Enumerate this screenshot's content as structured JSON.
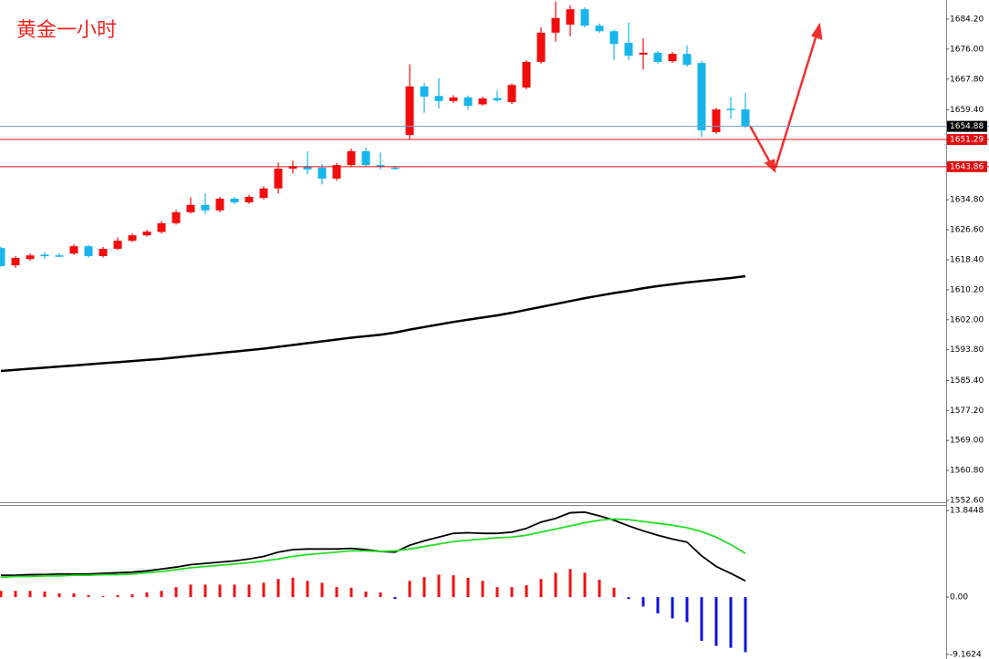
{
  "chart_data": [
    {
      "type": "candlestick",
      "title": "黄金一小时",
      "ylim": [
        1552.35,
        1689.43
      ],
      "yticks": [
        {
          "value": 1684.2,
          "label": "1684.20"
        },
        {
          "value": 1676,
          "label": "1676.00"
        },
        {
          "value": 1667.8,
          "label": "1667.80"
        },
        {
          "value": 1659.4,
          "label": "1659.40"
        },
        {
          "value": 1634.8,
          "label": "1634.80"
        },
        {
          "value": 1626.6,
          "label": "1626.60"
        },
        {
          "value": 1618.4,
          "label": "1618.40"
        },
        {
          "value": 1610.2,
          "label": "1610.20"
        },
        {
          "value": 1602,
          "label": "1602.00"
        },
        {
          "value": 1593.8,
          "label": "1593.80"
        },
        {
          "value": 1585.4,
          "label": "1585.40"
        },
        {
          "value": 1577.2,
          "label": "1577.20"
        },
        {
          "value": 1569,
          "label": "1569.00"
        },
        {
          "value": 1560.8,
          "label": "1560.80"
        },
        {
          "value": 1552.6,
          "label": "1552.60"
        }
      ],
      "up_color": "#f20d0d",
      "down_color": "#17b5ea",
      "open": [
        1621.6,
        1616.9,
        1618.6,
        1619.8,
        1619.6,
        1620.1,
        1622.1,
        1619.4,
        1621.4,
        1623.6,
        1625.1,
        1626.0,
        1628.4,
        1631.4,
        1633.4,
        1631.9,
        1635.1,
        1634.1,
        1635.3,
        1637.9,
        1643.3,
        1644.0,
        1643.6,
        1640.6,
        1644.3,
        1648.1,
        1644.3,
        1643.6,
        1652.5,
        1665.8,
        1663.2,
        1661.8,
        1662.8,
        1660.9,
        1662.6,
        1661.5,
        1665.5,
        1672.5,
        1680.5,
        1682.7,
        1686.9,
        1682.4,
        1680.9,
        1677.7,
        1674.5,
        1675.0,
        1672.7,
        1674.7,
        1672.2,
        1653.3,
        1659.7,
        1659.5
      ],
      "high": [
        1622.0,
        1619.4,
        1620.1,
        1620.5,
        1620.2,
        1622.6,
        1622.5,
        1621.9,
        1624.5,
        1625.6,
        1626.6,
        1629.0,
        1632.0,
        1635.5,
        1636.6,
        1635.6,
        1635.6,
        1636.2,
        1638.5,
        1645.0,
        1645.5,
        1648.0,
        1644.6,
        1644.9,
        1648.8,
        1649.0,
        1647.7,
        1644.1,
        1671.8,
        1666.8,
        1668.0,
        1663.4,
        1663.3,
        1663.0,
        1664.7,
        1666.6,
        1673.0,
        1682.0,
        1689.0,
        1688.0,
        1687.4,
        1683.0,
        1681.3,
        1683.3,
        1679.0,
        1675.5,
        1675.2,
        1677.0,
        1672.8,
        1660.0,
        1663.0,
        1664.0
      ],
      "low": [
        1616.5,
        1616.2,
        1618.1,
        1618.6,
        1619.1,
        1619.7,
        1619.0,
        1619.0,
        1621.0,
        1623.2,
        1624.7,
        1625.6,
        1628.0,
        1631.0,
        1631.0,
        1631.4,
        1633.6,
        1633.7,
        1634.9,
        1636.5,
        1642.0,
        1641.8,
        1639.0,
        1640.0,
        1643.9,
        1643.9,
        1643.0,
        1643.0,
        1651.4,
        1658.6,
        1659.7,
        1661.3,
        1659.4,
        1660.5,
        1661.6,
        1661.0,
        1665.0,
        1672.0,
        1678.0,
        1679.5,
        1681.9,
        1680.4,
        1673.0,
        1673.0,
        1670.5,
        1672.0,
        1672.2,
        1671.2,
        1652.0,
        1652.8,
        1657.0,
        1654.4
      ],
      "close": [
        1616.7,
        1618.9,
        1619.6,
        1619.4,
        1619.5,
        1622.1,
        1619.4,
        1621.4,
        1623.6,
        1625.1,
        1626.1,
        1628.4,
        1631.4,
        1633.4,
        1631.9,
        1635.1,
        1634.1,
        1635.6,
        1637.9,
        1643.3,
        1644.0,
        1643.1,
        1640.6,
        1644.3,
        1648.1,
        1644.3,
        1643.8,
        1643.3,
        1665.8,
        1663.0,
        1661.8,
        1662.8,
        1660.5,
        1662.5,
        1662.0,
        1666.2,
        1672.5,
        1680.5,
        1684.5,
        1686.9,
        1682.4,
        1680.9,
        1677.4,
        1674.2,
        1675.0,
        1672.5,
        1674.7,
        1671.7,
        1653.8,
        1659.5,
        1659.5,
        1654.8
      ],
      "ma": {
        "color": "#000000",
        "values": [
          1588.0,
          1588.3,
          1588.6,
          1588.9,
          1589.2,
          1589.5,
          1589.8,
          1590.1,
          1590.4,
          1590.7,
          1591.0,
          1591.3,
          1591.7,
          1592.1,
          1592.5,
          1592.9,
          1593.3,
          1593.7,
          1594.1,
          1594.6,
          1595.1,
          1595.6,
          1596.1,
          1596.6,
          1597.1,
          1597.5,
          1597.9,
          1598.5,
          1599.3,
          1600.0,
          1600.7,
          1601.4,
          1602.0,
          1602.6,
          1603.2,
          1603.9,
          1604.7,
          1605.5,
          1606.3,
          1607.1,
          1607.9,
          1608.6,
          1609.3,
          1609.9,
          1610.6,
          1611.2,
          1611.7,
          1612.2,
          1612.6,
          1613.0,
          1613.4,
          1613.9
        ]
      },
      "hlines": [
        {
          "value": 1654.88,
          "color": "#6f9fd2",
          "label_color": "#000000"
        },
        {
          "value": 1651.29,
          "color": "#e01010",
          "label_color": "#e01010"
        },
        {
          "value": 1643.86,
          "color": "#e01010",
          "label_color": "#e01010"
        }
      ]
    },
    {
      "type": "macd",
      "ylim": [
        -9.9,
        14.6
      ],
      "yticks": [
        13.8448,
        {
          "value": 0,
          "label": "0.00"
        },
        -9.1624
      ],
      "pos_color": "#ee1111",
      "neg_color": "#1010dd",
      "histogram": [
        1.0,
        1.0,
        1.0,
        0.9,
        0.6,
        0.6,
        0.3,
        0.15,
        0.3,
        0.45,
        0.75,
        1.0,
        1.6,
        2.0,
        2.0,
        2.0,
        2.0,
        2.0,
        2.3,
        2.9,
        3.1,
        2.6,
        2.3,
        1.6,
        1.5,
        0.9,
        0.75,
        -0.3,
        2.6,
        3.2,
        3.6,
        3.5,
        3.1,
        2.6,
        1.6,
        1.6,
        1.9,
        2.9,
        3.9,
        4.5,
        3.9,
        2.8,
        1.5,
        -0.3,
        -1.5,
        -2.6,
        -3.4,
        -4.0,
        -7.0,
        -7.8,
        -8.1,
        -8.8
      ],
      "lines": [
        {
          "color": "#000000",
          "values": [
            3.5,
            3.5,
            3.6,
            3.6,
            3.7,
            3.7,
            3.7,
            3.8,
            3.9,
            4.0,
            4.2,
            4.5,
            4.8,
            5.2,
            5.4,
            5.6,
            5.8,
            6.1,
            6.5,
            7.2,
            7.6,
            7.7,
            7.7,
            7.7,
            7.8,
            7.6,
            7.3,
            7.2,
            8.3,
            9.0,
            9.6,
            10.2,
            10.3,
            10.2,
            10.2,
            10.4,
            11.0,
            12.0,
            12.6,
            13.5,
            13.6,
            13.0,
            12.3,
            11.4,
            10.6,
            9.9,
            9.3,
            8.8,
            6.6,
            4.9,
            3.8,
            2.6
          ]
        },
        {
          "color": "#22dd22",
          "values": [
            3.2,
            3.3,
            3.3,
            3.4,
            3.4,
            3.5,
            3.5,
            3.6,
            3.6,
            3.7,
            3.9,
            4.1,
            4.4,
            4.7,
            4.9,
            5.1,
            5.3,
            5.5,
            5.8,
            6.1,
            6.5,
            6.8,
            7.0,
            7.2,
            7.4,
            7.4,
            7.3,
            7.4,
            7.7,
            8.1,
            8.5,
            8.9,
            9.1,
            9.3,
            9.5,
            9.6,
            9.9,
            10.4,
            10.9,
            11.4,
            11.9,
            12.3,
            12.5,
            12.4,
            12.1,
            11.8,
            11.5,
            11.1,
            10.5,
            9.6,
            8.4,
            7.0
          ]
        }
      ]
    }
  ]
}
